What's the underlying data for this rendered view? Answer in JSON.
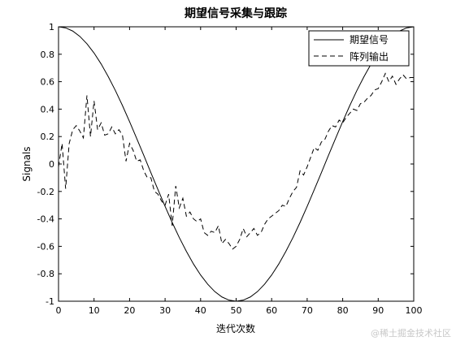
{
  "chart_data": {
    "type": "line",
    "title": "期望信号采集与跟踪",
    "xlabel": "迭代次数",
    "ylabel": "Signals",
    "xlim": [
      0,
      100
    ],
    "ylim": [
      -1,
      1
    ],
    "xticks": [
      0,
      10,
      20,
      30,
      40,
      50,
      60,
      70,
      80,
      90,
      100
    ],
    "yticks": [
      -1,
      -0.8,
      -0.6,
      -0.4,
      -0.2,
      0,
      0.2,
      0.4,
      0.6,
      0.8,
      1
    ],
    "grid": false,
    "legend_position": "top-right",
    "series": [
      {
        "name": "期望信号",
        "style": "solid",
        "formula": "cos(pi * x / 50)",
        "x": [
          0,
          2,
          4,
          6,
          8,
          10,
          12,
          14,
          16,
          18,
          20,
          22,
          24,
          26,
          28,
          30,
          32,
          34,
          36,
          38,
          40,
          42,
          44,
          46,
          48,
          50,
          52,
          54,
          56,
          58,
          60,
          62,
          64,
          66,
          68,
          70,
          72,
          74,
          76,
          78,
          80,
          82,
          84,
          86,
          88,
          90,
          92,
          94,
          96,
          98,
          100
        ],
        "values": [
          1.0,
          0.992,
          0.969,
          0.93,
          0.876,
          0.809,
          0.729,
          0.637,
          0.536,
          0.426,
          0.309,
          0.187,
          0.063,
          -0.063,
          -0.187,
          -0.309,
          -0.426,
          -0.536,
          -0.637,
          -0.729,
          -0.809,
          -0.876,
          -0.93,
          -0.969,
          -0.992,
          -1.0,
          -0.992,
          -0.969,
          -0.93,
          -0.876,
          -0.809,
          -0.729,
          -0.637,
          -0.536,
          -0.426,
          -0.309,
          -0.187,
          -0.063,
          0.063,
          0.187,
          0.309,
          0.426,
          0.536,
          0.637,
          0.729,
          0.809,
          0.876,
          0.93,
          0.969,
          0.992,
          1.0
        ]
      },
      {
        "name": "阵列输出",
        "style": "dashed",
        "x": [
          0,
          1,
          2,
          3,
          4,
          5,
          6,
          7,
          8,
          9,
          10,
          11,
          12,
          13,
          14,
          15,
          16,
          17,
          18,
          19,
          20,
          21,
          22,
          23,
          24,
          25,
          26,
          27,
          28,
          29,
          30,
          31,
          32,
          33,
          34,
          35,
          36,
          37,
          38,
          39,
          40,
          41,
          42,
          43,
          44,
          45,
          46,
          47,
          48,
          49,
          50,
          51,
          52,
          53,
          54,
          55,
          56,
          57,
          58,
          59,
          60,
          61,
          62,
          63,
          64,
          65,
          66,
          67,
          68,
          69,
          70,
          71,
          72,
          73,
          74,
          75,
          76,
          77,
          78,
          79,
          80,
          81,
          82,
          83,
          84,
          85,
          86,
          87,
          88,
          89,
          90,
          91,
          92,
          93,
          94,
          95,
          96,
          97,
          98,
          99,
          100
        ],
        "values": [
          -0.02,
          0.15,
          -0.18,
          0.15,
          0.25,
          0.28,
          0.24,
          0.19,
          0.5,
          0.2,
          0.46,
          0.25,
          0.3,
          0.21,
          0.22,
          0.27,
          0.22,
          0.25,
          0.21,
          0.02,
          0.15,
          0.1,
          0.02,
          0.03,
          -0.05,
          -0.1,
          -0.1,
          -0.2,
          -0.22,
          -0.27,
          -0.3,
          -0.22,
          -0.45,
          -0.16,
          -0.32,
          -0.25,
          -0.38,
          -0.35,
          -0.4,
          -0.42,
          -0.4,
          -0.5,
          -0.52,
          -0.49,
          -0.5,
          -0.45,
          -0.58,
          -0.55,
          -0.58,
          -0.62,
          -0.6,
          -0.55,
          -0.47,
          -0.53,
          -0.5,
          -0.47,
          -0.52,
          -0.5,
          -0.44,
          -0.4,
          -0.38,
          -0.36,
          -0.34,
          -0.3,
          -0.31,
          -0.25,
          -0.2,
          -0.17,
          -0.05,
          -0.08,
          -0.02,
          0.05,
          0.12,
          0.1,
          0.16,
          0.18,
          0.24,
          0.28,
          0.27,
          0.32,
          0.3,
          0.34,
          0.37,
          0.4,
          0.39,
          0.44,
          0.45,
          0.48,
          0.5,
          0.54,
          0.55,
          0.6,
          0.66,
          0.6,
          0.64,
          0.58,
          0.62,
          0.65,
          0.62,
          0.63,
          0.63
        ]
      }
    ]
  },
  "watermark": "@稀土掘金技术社区"
}
